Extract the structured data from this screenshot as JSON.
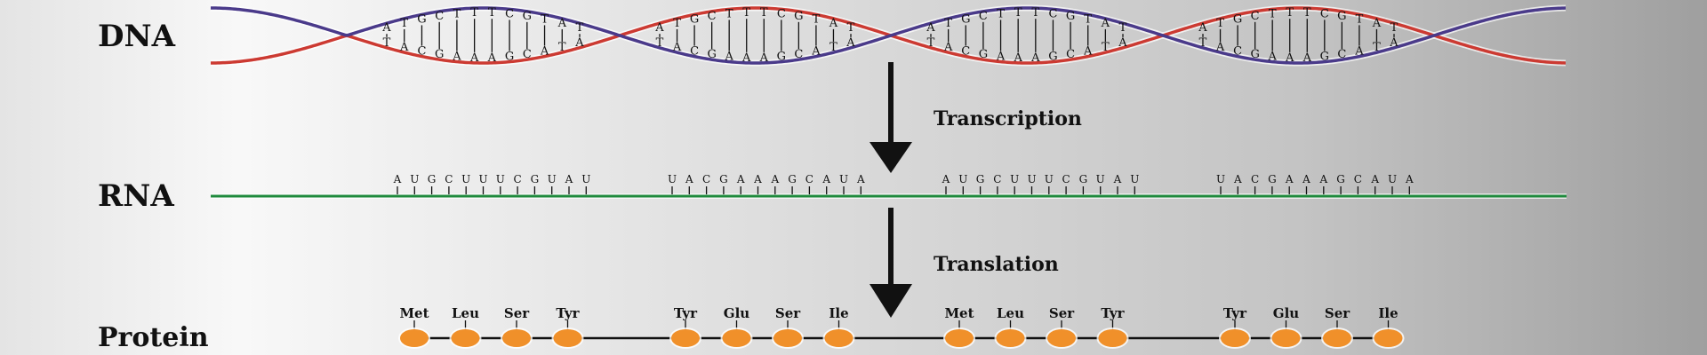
{
  "labels": {
    "dna": "DNA",
    "rna": "RNA",
    "protein": "Protein",
    "transcription": "Transcription",
    "translation": "Translation"
  },
  "dna": {
    "segments": [
      {
        "top": [
          "A",
          "T",
          "G",
          "C",
          "T",
          "T",
          "T",
          "C",
          "G",
          "T",
          "A",
          "T"
        ],
        "bottom": [
          "T",
          "A",
          "C",
          "G",
          "A",
          "A",
          "A",
          "G",
          "C",
          "A",
          "T",
          "A"
        ]
      },
      {
        "top": [
          "A",
          "T",
          "G",
          "C",
          "T",
          "T",
          "T",
          "C",
          "G",
          "T",
          "A",
          "T"
        ],
        "bottom": [
          "T",
          "A",
          "C",
          "G",
          "A",
          "A",
          "A",
          "G",
          "C",
          "A",
          "T",
          "A"
        ]
      },
      {
        "top": [
          "A",
          "T",
          "G",
          "C",
          "T",
          "T",
          "T",
          "C",
          "G",
          "T",
          "A",
          "T"
        ],
        "bottom": [
          "T",
          "A",
          "C",
          "G",
          "A",
          "A",
          "A",
          "G",
          "C",
          "A",
          "T",
          "A"
        ]
      },
      {
        "top": [
          "A",
          "T",
          "G",
          "C",
          "T",
          "T",
          "T",
          "C",
          "G",
          "T",
          "A",
          "T"
        ],
        "bottom": [
          "T",
          "A",
          "C",
          "G",
          "A",
          "A",
          "A",
          "G",
          "C",
          "A",
          "T",
          "A"
        ]
      }
    ],
    "colors": {
      "strand_a": "#cc3a32",
      "strand_b": "#4a3a8a"
    }
  },
  "rna": {
    "segments": [
      [
        "A",
        "U",
        "G",
        "C",
        "U",
        "U",
        "U",
        "C",
        "G",
        "U",
        "A",
        "U"
      ],
      [
        "U",
        "A",
        "C",
        "G",
        "A",
        "A",
        "A",
        "G",
        "C",
        "A",
        "U",
        "A"
      ],
      [
        "A",
        "U",
        "G",
        "C",
        "U",
        "U",
        "U",
        "C",
        "G",
        "U",
        "A",
        "U"
      ],
      [
        "U",
        "A",
        "C",
        "G",
        "A",
        "A",
        "A",
        "G",
        "C",
        "A",
        "U",
        "A"
      ]
    ],
    "color": "#1e8a3c"
  },
  "protein": {
    "groups": [
      [
        "Met",
        "Leu",
        "Ser",
        "Tyr"
      ],
      [
        "Tyr",
        "Glu",
        "Ser",
        "Ile"
      ],
      [
        "Met",
        "Leu",
        "Ser",
        "Tyr"
      ],
      [
        "Tyr",
        "Glu",
        "Ser",
        "Ile"
      ]
    ],
    "bead_color": "#f0902a"
  }
}
